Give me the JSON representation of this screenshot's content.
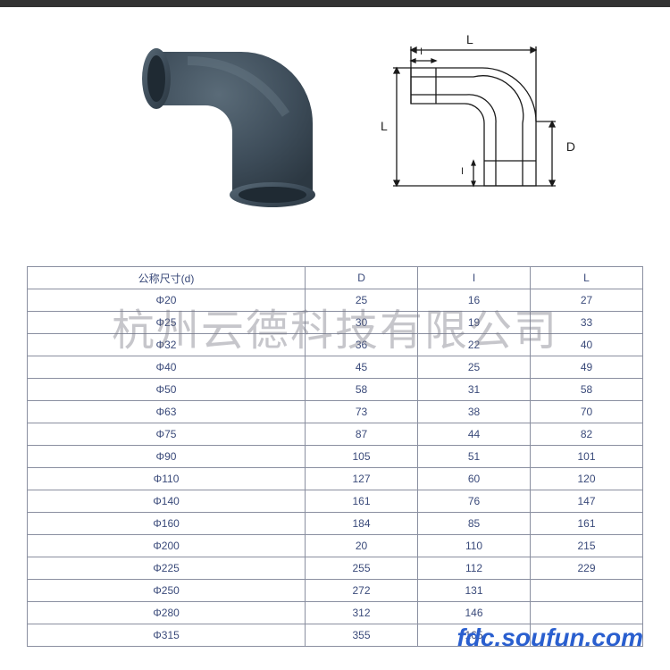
{
  "figure": {
    "elbow_color": "#3e4d5a",
    "elbow_shadow": "#2c3842",
    "elbow_highlight": "#5a6b78",
    "drawing_line_color": "#1a1a1a",
    "drawing_line_width": 1.3,
    "dim_L": "L",
    "dim_I": "I",
    "dim_D": "D",
    "background": "#ffffff"
  },
  "table": {
    "headers": [
      "公称尺寸(d)",
      "D",
      "I",
      "L"
    ],
    "rows": [
      [
        "Φ20",
        "25",
        "16",
        "27"
      ],
      [
        "Φ25",
        "30",
        "19",
        "33"
      ],
      [
        "Φ32",
        "36",
        "22",
        "40"
      ],
      [
        "Φ40",
        "45",
        "25",
        "49"
      ],
      [
        "Φ50",
        "58",
        "31",
        "58"
      ],
      [
        "Φ63",
        "73",
        "38",
        "70"
      ],
      [
        "Φ75",
        "87",
        "44",
        "82"
      ],
      [
        "Φ90",
        "105",
        "51",
        "101"
      ],
      [
        "Φ110",
        "127",
        "60",
        "120"
      ],
      [
        "Φ140",
        "161",
        "76",
        "147"
      ],
      [
        "Φ160",
        "184",
        "85",
        "161"
      ],
      [
        "Φ200",
        "20",
        "110",
        "215"
      ],
      [
        "Φ225",
        "255",
        "112",
        "229"
      ],
      [
        "Φ250",
        "272",
        "131",
        ""
      ],
      [
        "Φ280",
        "312",
        "146",
        ""
      ],
      [
        "Φ315",
        "355",
        "165",
        ""
      ]
    ],
    "border_color": "#8a8fa0",
    "text_color": "#3a4a7a",
    "font_size": 12
  },
  "watermark": "杭州云德科技有限公司",
  "source": "fdc.soufun.com"
}
